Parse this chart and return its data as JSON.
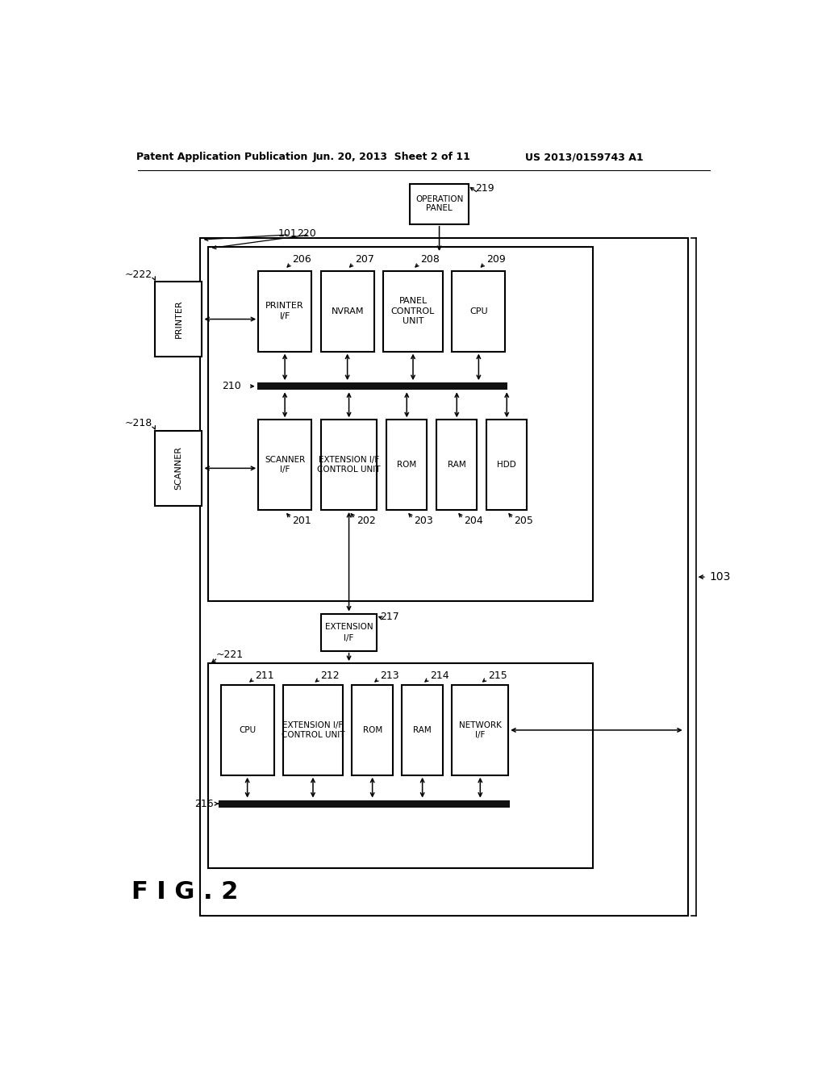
{
  "bg_color": "#ffffff",
  "header_left": "Patent Application Publication",
  "header_center": "Jun. 20, 2013  Sheet 2 of 11",
  "header_right": "US 2013/0159743 A1",
  "fig_label": "F I G . 2"
}
